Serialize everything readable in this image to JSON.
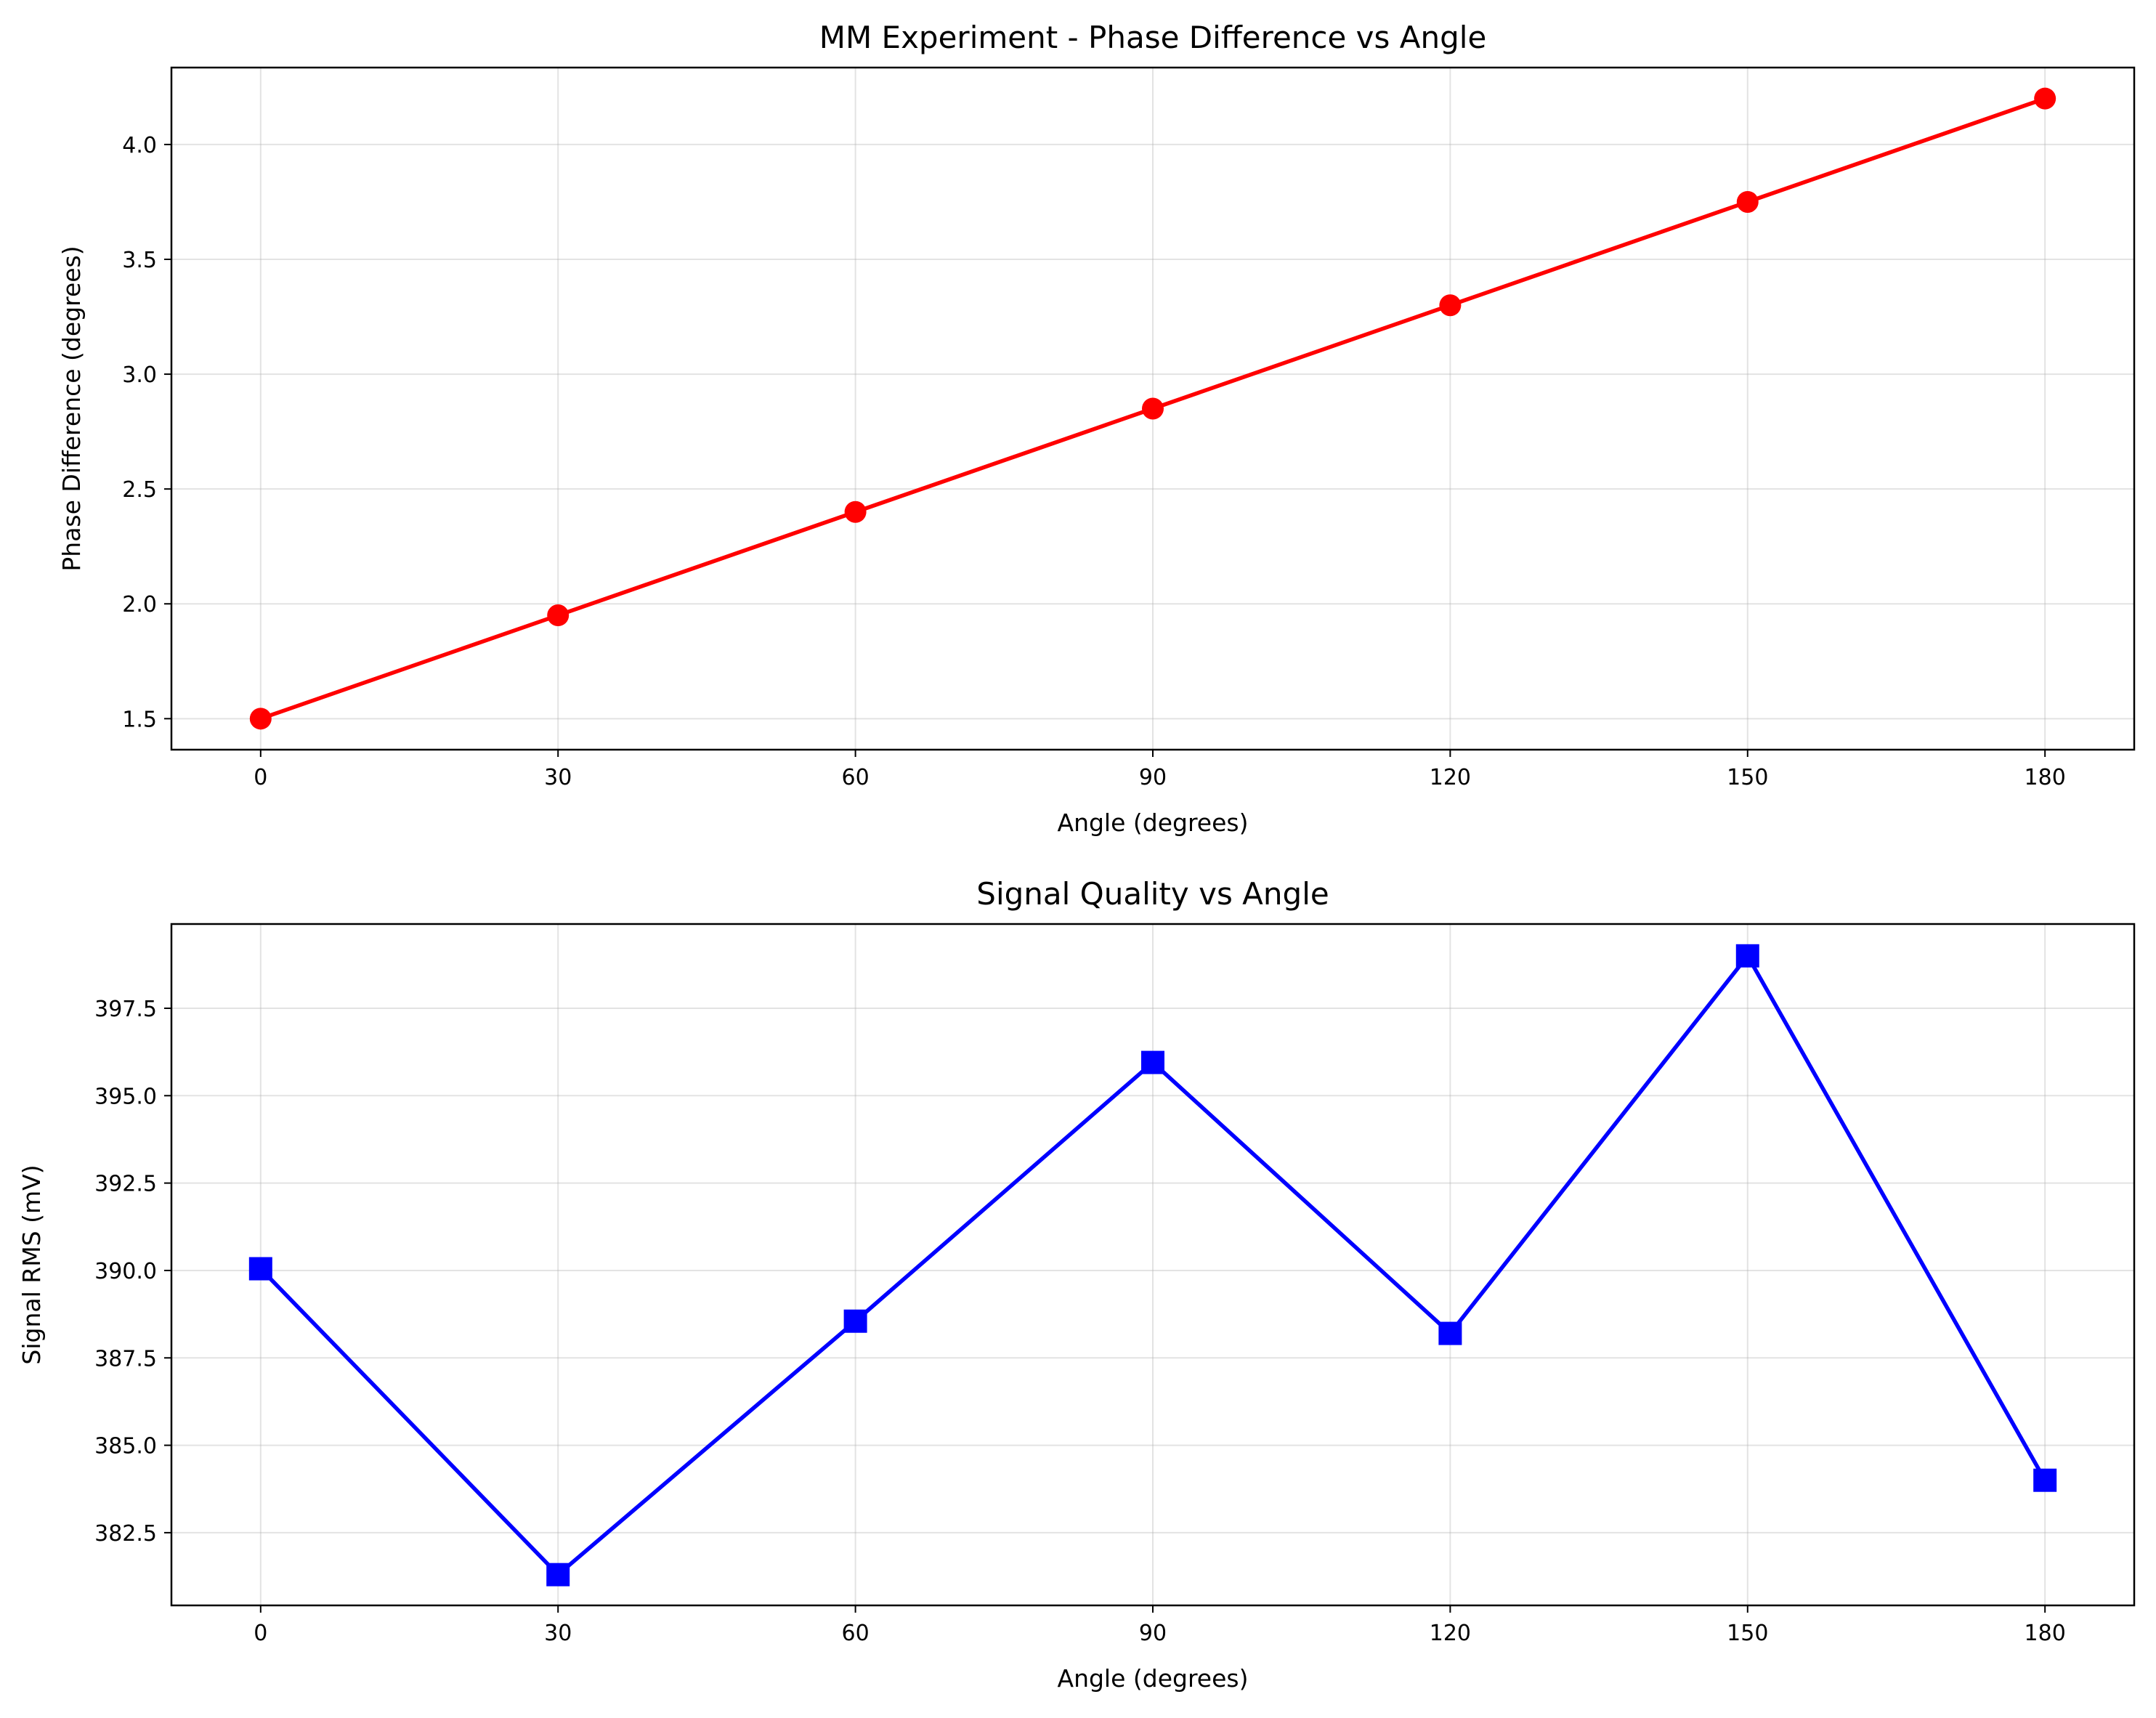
{
  "chart_data": [
    {
      "type": "line",
      "title": "MM Experiment - Phase Difference vs Angle",
      "xlabel": "Angle (degrees)",
      "ylabel": "Phase Difference (degrees)",
      "x": [
        0,
        30,
        60,
        90,
        120,
        150,
        180
      ],
      "xticks": [
        "0",
        "30",
        "60",
        "90",
        "120",
        "150",
        "180"
      ],
      "yticks": [
        1.5,
        2.0,
        2.5,
        3.0,
        3.5,
        4.0
      ],
      "ytick_labels": [
        "1.5",
        "2.0",
        "2.5",
        "3.0",
        "3.5",
        "4.0"
      ],
      "xlim": [
        -9,
        189
      ],
      "ylim": [
        1.365,
        4.335
      ],
      "grid": true,
      "series": [
        {
          "values": [
            1.5,
            1.95,
            2.4,
            2.85,
            3.3,
            3.75,
            4.2
          ],
          "color": "#ff0000",
          "marker": "circle"
        }
      ]
    },
    {
      "type": "line",
      "title": "Signal Quality vs Angle",
      "xlabel": "Angle (degrees)",
      "ylabel": "Signal RMS (mV)",
      "x": [
        0,
        30,
        60,
        90,
        120,
        150,
        180
      ],
      "xticks": [
        "0",
        "30",
        "60",
        "90",
        "120",
        "150",
        "180"
      ],
      "yticks": [
        382.5,
        385.0,
        387.5,
        390.0,
        392.5,
        395.0,
        397.5
      ],
      "ytick_labels": [
        "382.5",
        "385.0",
        "387.5",
        "390.0",
        "392.5",
        "395.0",
        "397.5"
      ],
      "xlim": [
        -9,
        189
      ],
      "ylim": [
        380.42,
        399.91
      ],
      "grid": true,
      "series": [
        {
          "values": [
            390.05,
            381.3,
            388.55,
            395.95,
            388.2,
            399.0,
            384.0
          ],
          "color": "#0000ff",
          "marker": "square"
        }
      ]
    }
  ]
}
